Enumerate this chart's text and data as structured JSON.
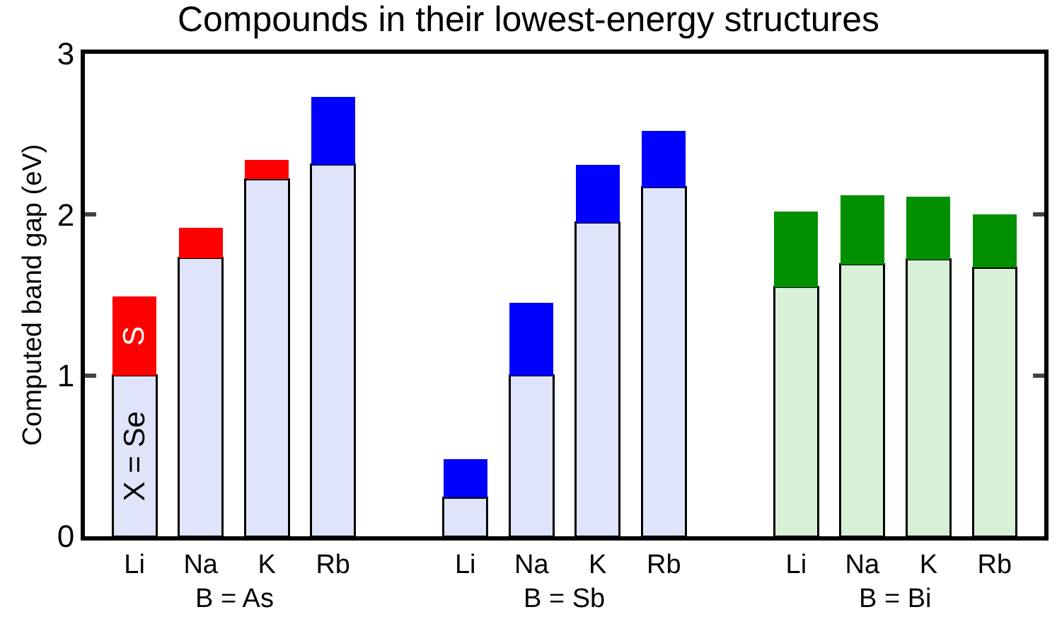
{
  "chart_data": {
    "type": "bar",
    "title": "Compounds in their lowest-energy structures",
    "ylabel": "Computed band gap (eV)",
    "categories": [
      "Li",
      "Na",
      "K",
      "Rb",
      null,
      "Li",
      "Na",
      "K",
      "Rb",
      null,
      "Li",
      "Na",
      "K",
      "Rb"
    ],
    "stacked": true,
    "series": [
      {
        "name": "X = Se",
        "colors": [
          "#e0e4fa",
          "#e0e4fa",
          "#e0e4fa",
          "#e0e4fa",
          "#e0e4fa",
          "#e0e4fa",
          "#e0e4fa",
          "#e0e4fa",
          "#e0e4fa",
          "#d8f0d8",
          "#d8f0d8",
          "#d8f0d8",
          "#d8f0d8",
          "#d8f0d8"
        ],
        "values": [
          1.0,
          1.73,
          2.22,
          2.31,
          null,
          0.24,
          1.0,
          1.95,
          2.17,
          null,
          1.55,
          1.69,
          1.72,
          1.67
        ]
      },
      {
        "name": "S",
        "colors": [
          "#ff0000",
          "#ff0000",
          "#ff0000",
          "#0000ff",
          "#0000ff",
          "#0000ff",
          "#0000ff",
          "#0000ff",
          "#0000ff",
          "#009000",
          "#009000",
          "#009000",
          "#009000",
          "#009000"
        ],
        "values": [
          0.49,
          0.19,
          0.12,
          0.42,
          null,
          0.24,
          0.45,
          0.36,
          0.35,
          null,
          0.47,
          0.43,
          0.39,
          0.33
        ]
      }
    ],
    "annotations": [
      "B = As",
      "B = Sb",
      "B = Bi"
    ],
    "ylim": [
      0,
      3
    ],
    "yticks": [
      0,
      1,
      2,
      3
    ],
    "legend": false
  }
}
